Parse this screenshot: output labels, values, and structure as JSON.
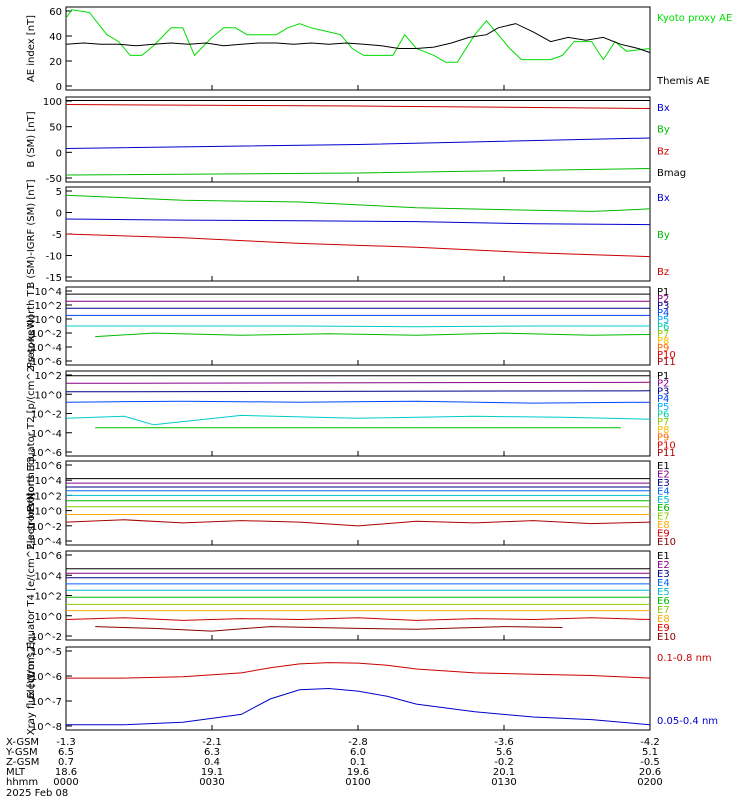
{
  "chart_data": [
    {
      "type": "line",
      "ylabel": "AE index [nT]",
      "y_ticks": [
        "60",
        "40",
        "20",
        "0"
      ],
      "ylim": [
        0,
        60
      ],
      "grid": false,
      "legend": [
        {
          "label": "Kyoto proxy AE",
          "color": "#00dd00"
        },
        {
          "label": "Themis AE",
          "color": "#000000"
        }
      ],
      "series": [
        {
          "color": "#00dd00",
          "x": [
            0,
            0.01,
            0.04,
            0.07,
            0.09,
            0.11,
            0.13,
            0.15,
            0.18,
            0.2,
            0.22,
            0.25,
            0.27,
            0.29,
            0.31,
            0.33,
            0.36,
            0.38,
            0.4,
            0.42,
            0.45,
            0.47,
            0.49,
            0.51,
            0.53,
            0.56,
            0.58,
            0.6,
            0.63,
            0.65,
            0.67,
            0.7,
            0.72,
            0.74,
            0.76,
            0.78,
            0.81,
            0.83,
            0.85,
            0.87,
            0.9,
            0.92,
            0.94,
            0.96,
            1.0
          ],
          "y": [
            52,
            58,
            56,
            40,
            35,
            25,
            25,
            32,
            45,
            45,
            25,
            38,
            45,
            45,
            40,
            40,
            40,
            45,
            48,
            45,
            42,
            40,
            30,
            25,
            25,
            25,
            40,
            30,
            25,
            20,
            20,
            40,
            50,
            40,
            30,
            22,
            22,
            22,
            25,
            35,
            35,
            22,
            35,
            28,
            30
          ]
        },
        {
          "color": "#000000",
          "x": [
            0,
            0.03,
            0.06,
            0.09,
            0.12,
            0.15,
            0.18,
            0.21,
            0.24,
            0.27,
            0.3,
            0.33,
            0.36,
            0.39,
            0.42,
            0.45,
            0.48,
            0.51,
            0.54,
            0.57,
            0.6,
            0.63,
            0.66,
            0.69,
            0.72,
            0.74,
            0.77,
            0.8,
            0.83,
            0.86,
            0.89,
            0.92,
            0.95,
            0.98,
            1.0
          ],
          "y": [
            33,
            34,
            33,
            33,
            32,
            33,
            34,
            33,
            34,
            32,
            33,
            34,
            34,
            33,
            34,
            33,
            34,
            33,
            32,
            30,
            30,
            31,
            34,
            38,
            40,
            45,
            48,
            42,
            35,
            38,
            36,
            38,
            33,
            30,
            27
          ]
        }
      ]
    },
    {
      "type": "line",
      "ylabel": "B (SM) [nT]",
      "y_ticks": [
        "100",
        "50",
        "0",
        "-50"
      ],
      "ylim": [
        -60,
        110
      ],
      "legend": [
        {
          "label": "Bx",
          "color": "#0000cc"
        },
        {
          "label": "By",
          "color": "#00bb00"
        },
        {
          "label": "Bz",
          "color": "#cc0000"
        },
        {
          "label": "Bmag",
          "color": "#000000"
        }
      ],
      "series": [
        {
          "color": "#0000cc",
          "x": [
            0,
            0.5,
            1
          ],
          "y": [
            7,
            15,
            28
          ]
        },
        {
          "color": "#00bb00",
          "x": [
            0,
            0.5,
            1
          ],
          "y": [
            -46,
            -42,
            -33
          ]
        },
        {
          "color": "#cc0000",
          "x": [
            0,
            0.5,
            1
          ],
          "y": [
            95,
            92,
            87
          ]
        },
        {
          "color": "#000000",
          "x": [
            0,
            0.5,
            1
          ],
          "y": [
            103,
            103,
            103
          ]
        }
      ]
    },
    {
      "type": "line",
      "ylabel": "B (SM)-IGRF (SM) [nT]",
      "y_ticks": [
        "5",
        "0",
        "-5",
        "-10",
        "-15"
      ],
      "ylim": [
        -18,
        7
      ],
      "legend": [
        {
          "label": "Bx",
          "color": "#0000cc"
        },
        {
          "label": "By",
          "color": "#00bb00"
        },
        {
          "label": "Bz",
          "color": "#cc0000"
        }
      ],
      "series": [
        {
          "color": "#00bb00",
          "x": [
            0,
            0.2,
            0.4,
            0.6,
            0.8,
            0.9,
            0.95,
            1
          ],
          "y": [
            4.8,
            3.5,
            3,
            1.5,
            0.8,
            0.5,
            0.8,
            1.2
          ]
        },
        {
          "color": "#0000cc",
          "x": [
            0,
            0.2,
            0.4,
            0.6,
            0.8,
            1
          ],
          "y": [
            -1.5,
            -1.8,
            -2,
            -2.2,
            -2.8,
            -3
          ]
        },
        {
          "color": "#cc0000",
          "x": [
            0,
            0.2,
            0.4,
            0.6,
            0.8,
            1
          ],
          "y": [
            -5.5,
            -6.5,
            -8,
            -9,
            -10.5,
            -11.5
          ]
        }
      ]
    },
    {
      "type": "line",
      "ylabel": "Protons North T1",
      "y_ticks": [
        "10^4",
        "10^2",
        "10^0",
        "10^-2",
        "10^-4",
        "10^-6"
      ],
      "ylim": [
        -7,
        4
      ],
      "legend": [
        {
          "label": "P1",
          "color": "#000000"
        },
        {
          "label": "P2",
          "color": "#880088"
        },
        {
          "label": "P3",
          "color": "#000088"
        },
        {
          "label": "P4",
          "color": "#0044ff"
        },
        {
          "label": "P5",
          "color": "#00aaff"
        },
        {
          "label": "P6",
          "color": "#00ccaa"
        },
        {
          "label": "P7",
          "color": "#88cc00"
        },
        {
          "label": "P8",
          "color": "#ffbb00"
        },
        {
          "label": "P9",
          "color": "#ff6600"
        },
        {
          "label": "P10",
          "color": "#dd0000"
        },
        {
          "label": "P11",
          "color": "#aa0000"
        }
      ],
      "series": [
        {
          "color": "#000000",
          "x": [
            0,
            1
          ],
          "y": [
            3,
            3
          ]
        },
        {
          "color": "#880088",
          "x": [
            0,
            1
          ],
          "y": [
            2,
            2
          ]
        },
        {
          "color": "#000088",
          "x": [
            0,
            1
          ],
          "y": [
            1,
            1
          ]
        },
        {
          "color": "#0044ff",
          "x": [
            0,
            1
          ],
          "y": [
            0,
            0
          ]
        },
        {
          "color": "#00cccc",
          "x": [
            0,
            0.2,
            0.4,
            0.6,
            0.8,
            1
          ],
          "y": [
            -1.5,
            -1.5,
            -1.5,
            -1.6,
            -1.5,
            -1.5
          ]
        },
        {
          "color": "#00bb00",
          "x": [
            0.05,
            0.15,
            0.3,
            0.45,
            0.6,
            0.75,
            0.9,
            1
          ],
          "y": [
            -3,
            -2.5,
            -2.8,
            -2.6,
            -2.8,
            -2.5,
            -2.8,
            -2.7
          ]
        }
      ]
    },
    {
      "type": "line",
      "ylabel": "Protons Equator T2 [p/(cm^2-s-sr-keV)]",
      "y_ticks": [
        "10^2",
        "10^0",
        "10^-2",
        "10^-4",
        "10^-6"
      ],
      "ylim": [
        -6.5,
        2.5
      ],
      "legend": [
        {
          "label": "P1",
          "color": "#000000"
        },
        {
          "label": "P2",
          "color": "#880088"
        },
        {
          "label": "P3",
          "color": "#000088"
        },
        {
          "label": "P4",
          "color": "#0044ff"
        },
        {
          "label": "P5",
          "color": "#00aaff"
        },
        {
          "label": "P6",
          "color": "#00ccaa"
        },
        {
          "label": "P7",
          "color": "#88cc00"
        },
        {
          "label": "P8",
          "color": "#ffbb00"
        },
        {
          "label": "P9",
          "color": "#ff6600"
        },
        {
          "label": "P10",
          "color": "#dd0000"
        },
        {
          "label": "P11",
          "color": "#aa0000"
        }
      ],
      "series": [
        {
          "color": "#000000",
          "x": [
            0,
            1
          ],
          "y": [
            2,
            2
          ]
        },
        {
          "color": "#880088",
          "x": [
            0,
            1
          ],
          "y": [
            1.2,
            1.3
          ]
        },
        {
          "color": "#000088",
          "x": [
            0,
            1
          ],
          "y": [
            0.3,
            0.4
          ]
        },
        {
          "color": "#0044ff",
          "x": [
            0,
            0.2,
            0.4,
            0.6,
            0.8,
            1
          ],
          "y": [
            -0.8,
            -0.7,
            -0.8,
            -0.7,
            -0.9,
            -0.8
          ]
        },
        {
          "color": "#00cccc",
          "x": [
            0,
            0.1,
            0.15,
            0.3,
            0.5,
            0.7,
            0.85,
            1
          ],
          "y": [
            -2.5,
            -2.3,
            -3.2,
            -2.2,
            -2.5,
            -2.3,
            -2.4,
            -2.6
          ]
        },
        {
          "color": "#00bb00",
          "x": [
            0.05,
            0.3,
            0.55,
            0.8,
            0.95
          ],
          "y": [
            -3.5,
            -3.5,
            -3.5,
            -3.5,
            -3.5
          ]
        }
      ]
    },
    {
      "type": "line",
      "ylabel": "Electrons North T3",
      "y_ticks": [
        "10^6",
        "10^4",
        "10^2",
        "10^0",
        "10^-2",
        "10^-4"
      ],
      "ylim": [
        -4.5,
        6.5
      ],
      "legend": [
        {
          "label": "E1",
          "color": "#000000"
        },
        {
          "label": "E2",
          "color": "#880088"
        },
        {
          "label": "E3",
          "color": "#000088"
        },
        {
          "label": "E4",
          "color": "#0066ff"
        },
        {
          "label": "E5",
          "color": "#00bbcc"
        },
        {
          "label": "E6",
          "color": "#00bb00"
        },
        {
          "label": "E7",
          "color": "#88cc00"
        },
        {
          "label": "E8",
          "color": "#ffaa00"
        },
        {
          "label": "E9",
          "color": "#dd0000"
        },
        {
          "label": "E10",
          "color": "#880000"
        }
      ],
      "series": [
        {
          "color": "#000000",
          "x": [
            0,
            1
          ],
          "y": [
            4.2,
            4.2
          ]
        },
        {
          "color": "#880088",
          "x": [
            0,
            1
          ],
          "y": [
            3.6,
            3.6
          ]
        },
        {
          "color": "#000088",
          "x": [
            0,
            1
          ],
          "y": [
            3.1,
            3.1
          ]
        },
        {
          "color": "#0066ff",
          "x": [
            0,
            1
          ],
          "y": [
            2.6,
            2.6
          ]
        },
        {
          "color": "#00bbcc",
          "x": [
            0,
            1
          ],
          "y": [
            2,
            2
          ]
        },
        {
          "color": "#00bb00",
          "x": [
            0,
            1
          ],
          "y": [
            1.3,
            1.3
          ]
        },
        {
          "color": "#88cc00",
          "x": [
            0,
            1
          ],
          "y": [
            0.5,
            0.5
          ]
        },
        {
          "color": "#ffaa00",
          "x": [
            0,
            1
          ],
          "y": [
            -0.5,
            -0.5
          ]
        },
        {
          "color": "#aa0000",
          "x": [
            0,
            0.1,
            0.2,
            0.3,
            0.4,
            0.5,
            0.6,
            0.7,
            0.8,
            0.9,
            1
          ],
          "y": [
            -1.5,
            -1.2,
            -1.6,
            -1.3,
            -1.5,
            -2.0,
            -1.4,
            -1.6,
            -1.3,
            -1.7,
            -1.5
          ]
        }
      ]
    },
    {
      "type": "line",
      "ylabel": "Electrons Equator T4 [e/(cm^2-s-sr-keV)]",
      "y_ticks": [
        "10^6",
        "10^4",
        "10^2",
        "10^0",
        "10^-2"
      ],
      "ylim": [
        -3.5,
        6.5
      ],
      "legend": [
        {
          "label": "E1",
          "color": "#000000"
        },
        {
          "label": "E2",
          "color": "#880088"
        },
        {
          "label": "E3",
          "color": "#000088"
        },
        {
          "label": "E4",
          "color": "#0066ff"
        },
        {
          "label": "E5",
          "color": "#00bbcc"
        },
        {
          "label": "E6",
          "color": "#00bb00"
        },
        {
          "label": "E7",
          "color": "#88cc00"
        },
        {
          "label": "E8",
          "color": "#ffaa00"
        },
        {
          "label": "E9",
          "color": "#dd0000"
        },
        {
          "label": "E10",
          "color": "#880000"
        }
      ],
      "series": [
        {
          "color": "#000000",
          "x": [
            0,
            1
          ],
          "y": [
            4.5,
            4.5
          ]
        },
        {
          "color": "#880088",
          "x": [
            0,
            1
          ],
          "y": [
            4.0,
            4.0
          ]
        },
        {
          "color": "#000088",
          "x": [
            0,
            1
          ],
          "y": [
            3.5,
            3.5
          ]
        },
        {
          "color": "#0066ff",
          "x": [
            0,
            1
          ],
          "y": [
            2.8,
            2.8
          ]
        },
        {
          "color": "#00bbcc",
          "x": [
            0,
            1
          ],
          "y": [
            2.1,
            2.1
          ]
        },
        {
          "color": "#00bb00",
          "x": [
            0,
            1
          ],
          "y": [
            1.3,
            1.3
          ]
        },
        {
          "color": "#88cc00",
          "x": [
            0,
            1
          ],
          "y": [
            0.5,
            0.5
          ]
        },
        {
          "color": "#ffaa00",
          "x": [
            0,
            1
          ],
          "y": [
            -0.2,
            -0.2
          ]
        },
        {
          "color": "#cc0000",
          "x": [
            0,
            0.1,
            0.2,
            0.3,
            0.4,
            0.5,
            0.6,
            0.7,
            0.8,
            0.9,
            1
          ],
          "y": [
            -1.2,
            -1.0,
            -1.3,
            -1.1,
            -1.2,
            -1.0,
            -1.3,
            -1.1,
            -1.2,
            -1.0,
            -1.2
          ]
        },
        {
          "color": "#880000",
          "x": [
            0.05,
            0.15,
            0.25,
            0.35,
            0.5,
            0.6,
            0.75,
            0.85
          ],
          "y": [
            -2.0,
            -2.2,
            -2.5,
            -2.0,
            -2.2,
            -2.3,
            -2.0,
            -2.1
          ]
        }
      ]
    },
    {
      "type": "line",
      "ylabel": "Xray flux [W/m^2]",
      "y_ticks": [
        "10^-5",
        "10^-6",
        "10^-7",
        "10^-8"
      ],
      "ylim": [
        -8.2,
        -5
      ],
      "legend": [
        {
          "label": "0.1-0.8 nm",
          "color": "#cc0000"
        },
        {
          "label": "0.05-0.4 nm",
          "color": "#0000cc"
        }
      ],
      "series": [
        {
          "color": "#cc0000",
          "x": [
            0,
            0.1,
            0.2,
            0.3,
            0.35,
            0.4,
            0.45,
            0.5,
            0.55,
            0.6,
            0.7,
            0.8,
            0.9,
            1
          ],
          "y": [
            -6.2,
            -6.2,
            -6.15,
            -6.0,
            -5.8,
            -5.65,
            -5.6,
            -5.62,
            -5.7,
            -5.85,
            -6.0,
            -6.05,
            -6.1,
            -6.2
          ]
        },
        {
          "color": "#0000cc",
          "x": [
            0,
            0.1,
            0.2,
            0.3,
            0.35,
            0.4,
            0.45,
            0.5,
            0.55,
            0.6,
            0.7,
            0.8,
            0.9,
            1
          ],
          "y": [
            -8.0,
            -8.0,
            -7.9,
            -7.6,
            -7.0,
            -6.65,
            -6.6,
            -6.7,
            -6.9,
            -7.2,
            -7.5,
            -7.7,
            -7.8,
            -8.0
          ]
        }
      ]
    }
  ],
  "x_ticks": {
    "X-GSM": [
      "-1.3",
      "-2.1",
      "-2.8",
      "-3.6",
      "-4.2"
    ],
    "Y-GSM": [
      "6.5",
      "6.3",
      "6.0",
      "5.6",
      "5.1"
    ],
    "Z-GSM": [
      "0.7",
      "0.4",
      "0.1",
      "-0.2",
      "-0.5"
    ],
    "MLT": [
      "18.6",
      "19.1",
      "19.6",
      "20.1",
      "20.6"
    ],
    "hhmm": [
      "0000",
      "0030",
      "0100",
      "0130",
      "0200"
    ]
  },
  "footer": {
    "date": "2025 Feb 08"
  }
}
